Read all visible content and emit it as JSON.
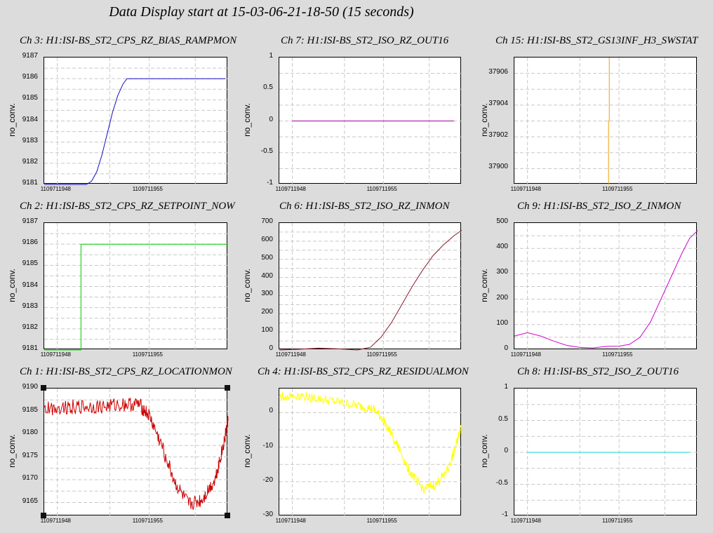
{
  "header": {
    "title": "Data Display start at 15-03-06-21-18-50 (15 seconds)"
  },
  "chart_data": [
    {
      "type": "line",
      "title": "Ch 3: H1:ISI-BS_ST2_CPS_RZ_BIAS_RAMPMON",
      "ylabel": "no_conv.",
      "ylim": [
        9181,
        9187
      ],
      "yticks": [
        "9181",
        "9182",
        "9183",
        "9184",
        "9185",
        "9186",
        "9187"
      ],
      "xlim": [
        1109711947,
        1109711961
      ],
      "xticks": [
        {
          "v": 1109711948,
          "label": "1109711948"
        },
        {
          "v": 1109711955,
          "label": "1109711955"
        }
      ],
      "grid": true,
      "color": "#1010c0",
      "series": [
        {
          "x": [
            1109711947.0,
            1109711950.2,
            1109711950.6,
            1109711951.0,
            1109711951.4,
            1109711951.8,
            1109711952.2,
            1109711952.6,
            1109711953.0,
            1109711953.3,
            1109711956.0,
            1109711960.8
          ],
          "values": [
            9181.0,
            9181.0,
            9181.15,
            9181.6,
            9182.4,
            9183.4,
            9184.4,
            9185.2,
            9185.75,
            9186.0,
            9186.0,
            9186.0
          ]
        }
      ]
    },
    {
      "type": "line",
      "title": "Ch 7: H1:ISI-BS_ST2_ISO_RZ_OUT16",
      "ylabel": "no_conv.",
      "ylim": [
        -1,
        1
      ],
      "yticks": [
        "-1",
        "-0.5",
        "0",
        "0.5",
        "1"
      ],
      "xlim": [
        1109711947,
        1109711961
      ],
      "xticks": [
        {
          "v": 1109711948,
          "label": "1109711948"
        },
        {
          "v": 1109711955,
          "label": "1109711955"
        }
      ],
      "grid": true,
      "color": "#a000a0",
      "series": [
        {
          "x": [
            1109711948.0,
            1109711960.4
          ],
          "values": [
            0,
            0
          ]
        }
      ]
    },
    {
      "type": "line",
      "title": "Ch 15: H1:ISI-BS_ST2_GS13INF_H3_SWSTAT",
      "ylabel": "no_conv.",
      "ylim": [
        37899,
        37907
      ],
      "yticks": [
        "37900",
        "37902",
        "37904",
        "37906"
      ],
      "ytickvals": [
        37900,
        37902,
        37904,
        37906
      ],
      "xlim": [
        1109711947,
        1109711961
      ],
      "xticks": [
        {
          "v": 1109711948,
          "label": "1109711948"
        },
        {
          "v": 1109711955,
          "label": "1109711955"
        }
      ],
      "grid": true,
      "color": "#f0a000",
      "series": [
        {
          "x": [
            1109711954.2,
            1109711954.2,
            1109711954.25,
            1109711954.25
          ],
          "values": [
            37899,
            37903,
            37903,
            37907
          ]
        }
      ]
    },
    {
      "type": "line",
      "title": "Ch 2: H1:ISI-BS_ST2_CPS_RZ_SETPOINT_NOW",
      "ylabel": "no_conv.",
      "ylim": [
        9181,
        9187
      ],
      "yticks": [
        "9181",
        "9182",
        "9183",
        "9184",
        "9185",
        "9186",
        "9187"
      ],
      "xlim": [
        1109711947,
        1109711961
      ],
      "xticks": [
        {
          "v": 1109711948,
          "label": "1109711948"
        },
        {
          "v": 1109711955,
          "label": "1109711955"
        }
      ],
      "grid": true,
      "color": "#00c800",
      "series": [
        {
          "x": [
            1109711947.0,
            1109711949.8,
            1109711949.8,
            1109711961.0
          ],
          "values": [
            9181.0,
            9181.0,
            9186.0,
            9186.0
          ]
        }
      ]
    },
    {
      "type": "line",
      "title": "Ch 6: H1:ISI-BS_ST2_ISO_RZ_INMON",
      "ylabel": "no_conv.",
      "ylim": [
        0,
        700
      ],
      "yticks": [
        "0",
        "100",
        "200",
        "300",
        "400",
        "500",
        "600",
        "700"
      ],
      "xlim": [
        1109711947,
        1109711961
      ],
      "xticks": [
        {
          "v": 1109711948,
          "label": "1109711948"
        },
        {
          "v": 1109711955,
          "label": "1109711955"
        }
      ],
      "grid": true,
      "color": "#8b1a2a",
      "series": [
        {
          "x": [
            1109711947.0,
            1109711948.5,
            1109711950.0,
            1109711951.5,
            1109711953.0,
            1109711954.0,
            1109711954.8,
            1109711955.6,
            1109711956.4,
            1109711957.2,
            1109711958.0,
            1109711958.8,
            1109711959.6,
            1109711960.4,
            1109711961.0
          ],
          "values": [
            0,
            4,
            10,
            6,
            0,
            15,
            70,
            150,
            250,
            350,
            440,
            520,
            580,
            630,
            660
          ]
        }
      ]
    },
    {
      "type": "line",
      "title": "Ch 9: H1:ISI-BS_ST2_ISO_Z_INMON",
      "ylabel": "no_conv.",
      "ylim": [
        0,
        500
      ],
      "yticks": [
        "0",
        "100",
        "200",
        "300",
        "400",
        "500"
      ],
      "xlim": [
        1109711947,
        1109711961
      ],
      "xticks": [
        {
          "v": 1109711948,
          "label": "1109711948"
        },
        {
          "v": 1109711955,
          "label": "1109711955"
        }
      ],
      "grid": true,
      "color": "#d000d0",
      "series": [
        {
          "x": [
            1109711947.0,
            1109711948.0,
            1109711949.0,
            1109711950.0,
            1109711951.0,
            1109711952.0,
            1109711953.0,
            1109711954.0,
            1109711955.0,
            1109711955.8,
            1109711956.6,
            1109711957.4,
            1109711958.2,
            1109711959.0,
            1109711959.8,
            1109711960.4,
            1109711961.0
          ],
          "values": [
            55,
            68,
            55,
            35,
            18,
            10,
            8,
            14,
            15,
            22,
            50,
            110,
            200,
            290,
            380,
            440,
            470
          ]
        }
      ]
    },
    {
      "type": "line",
      "title": "Ch 1: H1:ISI-BS_ST2_CPS_RZ_LOCATIONMON",
      "ylabel": "no_conv.",
      "ylim": [
        9162,
        9190
      ],
      "yticks": [
        "9165",
        "9170",
        "9175",
        "9180",
        "9185",
        "9190"
      ],
      "ytickvals": [
        9165,
        9170,
        9175,
        9180,
        9185,
        9190
      ],
      "xlim": [
        1109711947,
        1109711961
      ],
      "xticks": [
        {
          "v": 1109711948,
          "label": "1109711948"
        },
        {
          "v": 1109711955,
          "label": "1109711955"
        }
      ],
      "grid": true,
      "noise": 1.6,
      "color": "#cc0000",
      "series": [
        {
          "x": [
            1109711947.0,
            1109711948.5,
            1109711950.0,
            1109711951.5,
            1109711953.0,
            1109711954.2,
            1109711955.0,
            1109711956.0,
            1109711957.0,
            1109711958.0,
            1109711959.0,
            1109711960.0,
            1109711960.6,
            1109711961.0
          ],
          "values": [
            9185.5,
            9186,
            9186,
            9186,
            9186.5,
            9186.5,
            9184,
            9177,
            9169,
            9164.5,
            9165.5,
            9170,
            9177,
            9183
          ]
        }
      ]
    },
    {
      "type": "line",
      "title": "Ch 4: H1:ISI-BS_ST2_CPS_RZ_RESIDUALMON",
      "ylabel": "no_conv.",
      "ylim": [
        -30,
        7
      ],
      "yticks": [
        "-30",
        "-20",
        "-10",
        "0"
      ],
      "ytickvals": [
        -30,
        -20,
        -10,
        0
      ],
      "xlim": [
        1109711947,
        1109711961
      ],
      "xticks": [
        {
          "v": 1109711948,
          "label": "1109711948"
        },
        {
          "v": 1109711955,
          "label": "1109711955"
        }
      ],
      "grid": true,
      "noise": 1.4,
      "color": "#ffff00",
      "series": [
        {
          "x": [
            1109711947.0,
            1109711948.5,
            1109711950.0,
            1109711951.5,
            1109711953.0,
            1109711954.2,
            1109711955.0,
            1109711956.0,
            1109711957.0,
            1109711958.0,
            1109711959.0,
            1109711960.0,
            1109711960.6,
            1109711961.0
          ],
          "values": [
            4.5,
            5,
            4,
            3,
            2,
            1,
            -2,
            -9,
            -17,
            -22,
            -21,
            -16,
            -9,
            -3
          ]
        }
      ]
    },
    {
      "type": "line",
      "title": "Ch 8: H1:ISI-BS_ST2_ISO_Z_OUT16",
      "ylabel": "no_conv.",
      "ylim": [
        -1,
        1
      ],
      "yticks": [
        "-1",
        "-0.5",
        "0",
        "0.5",
        "1"
      ],
      "xlim": [
        1109711947,
        1109711961
      ],
      "xticks": [
        {
          "v": 1109711948,
          "label": "1109711948"
        },
        {
          "v": 1109711955,
          "label": "1109711955"
        }
      ],
      "grid": true,
      "color": "#00d8d8",
      "series": [
        {
          "x": [
            1109711948.0,
            1109711960.4
          ],
          "values": [
            0,
            0
          ]
        }
      ]
    }
  ]
}
